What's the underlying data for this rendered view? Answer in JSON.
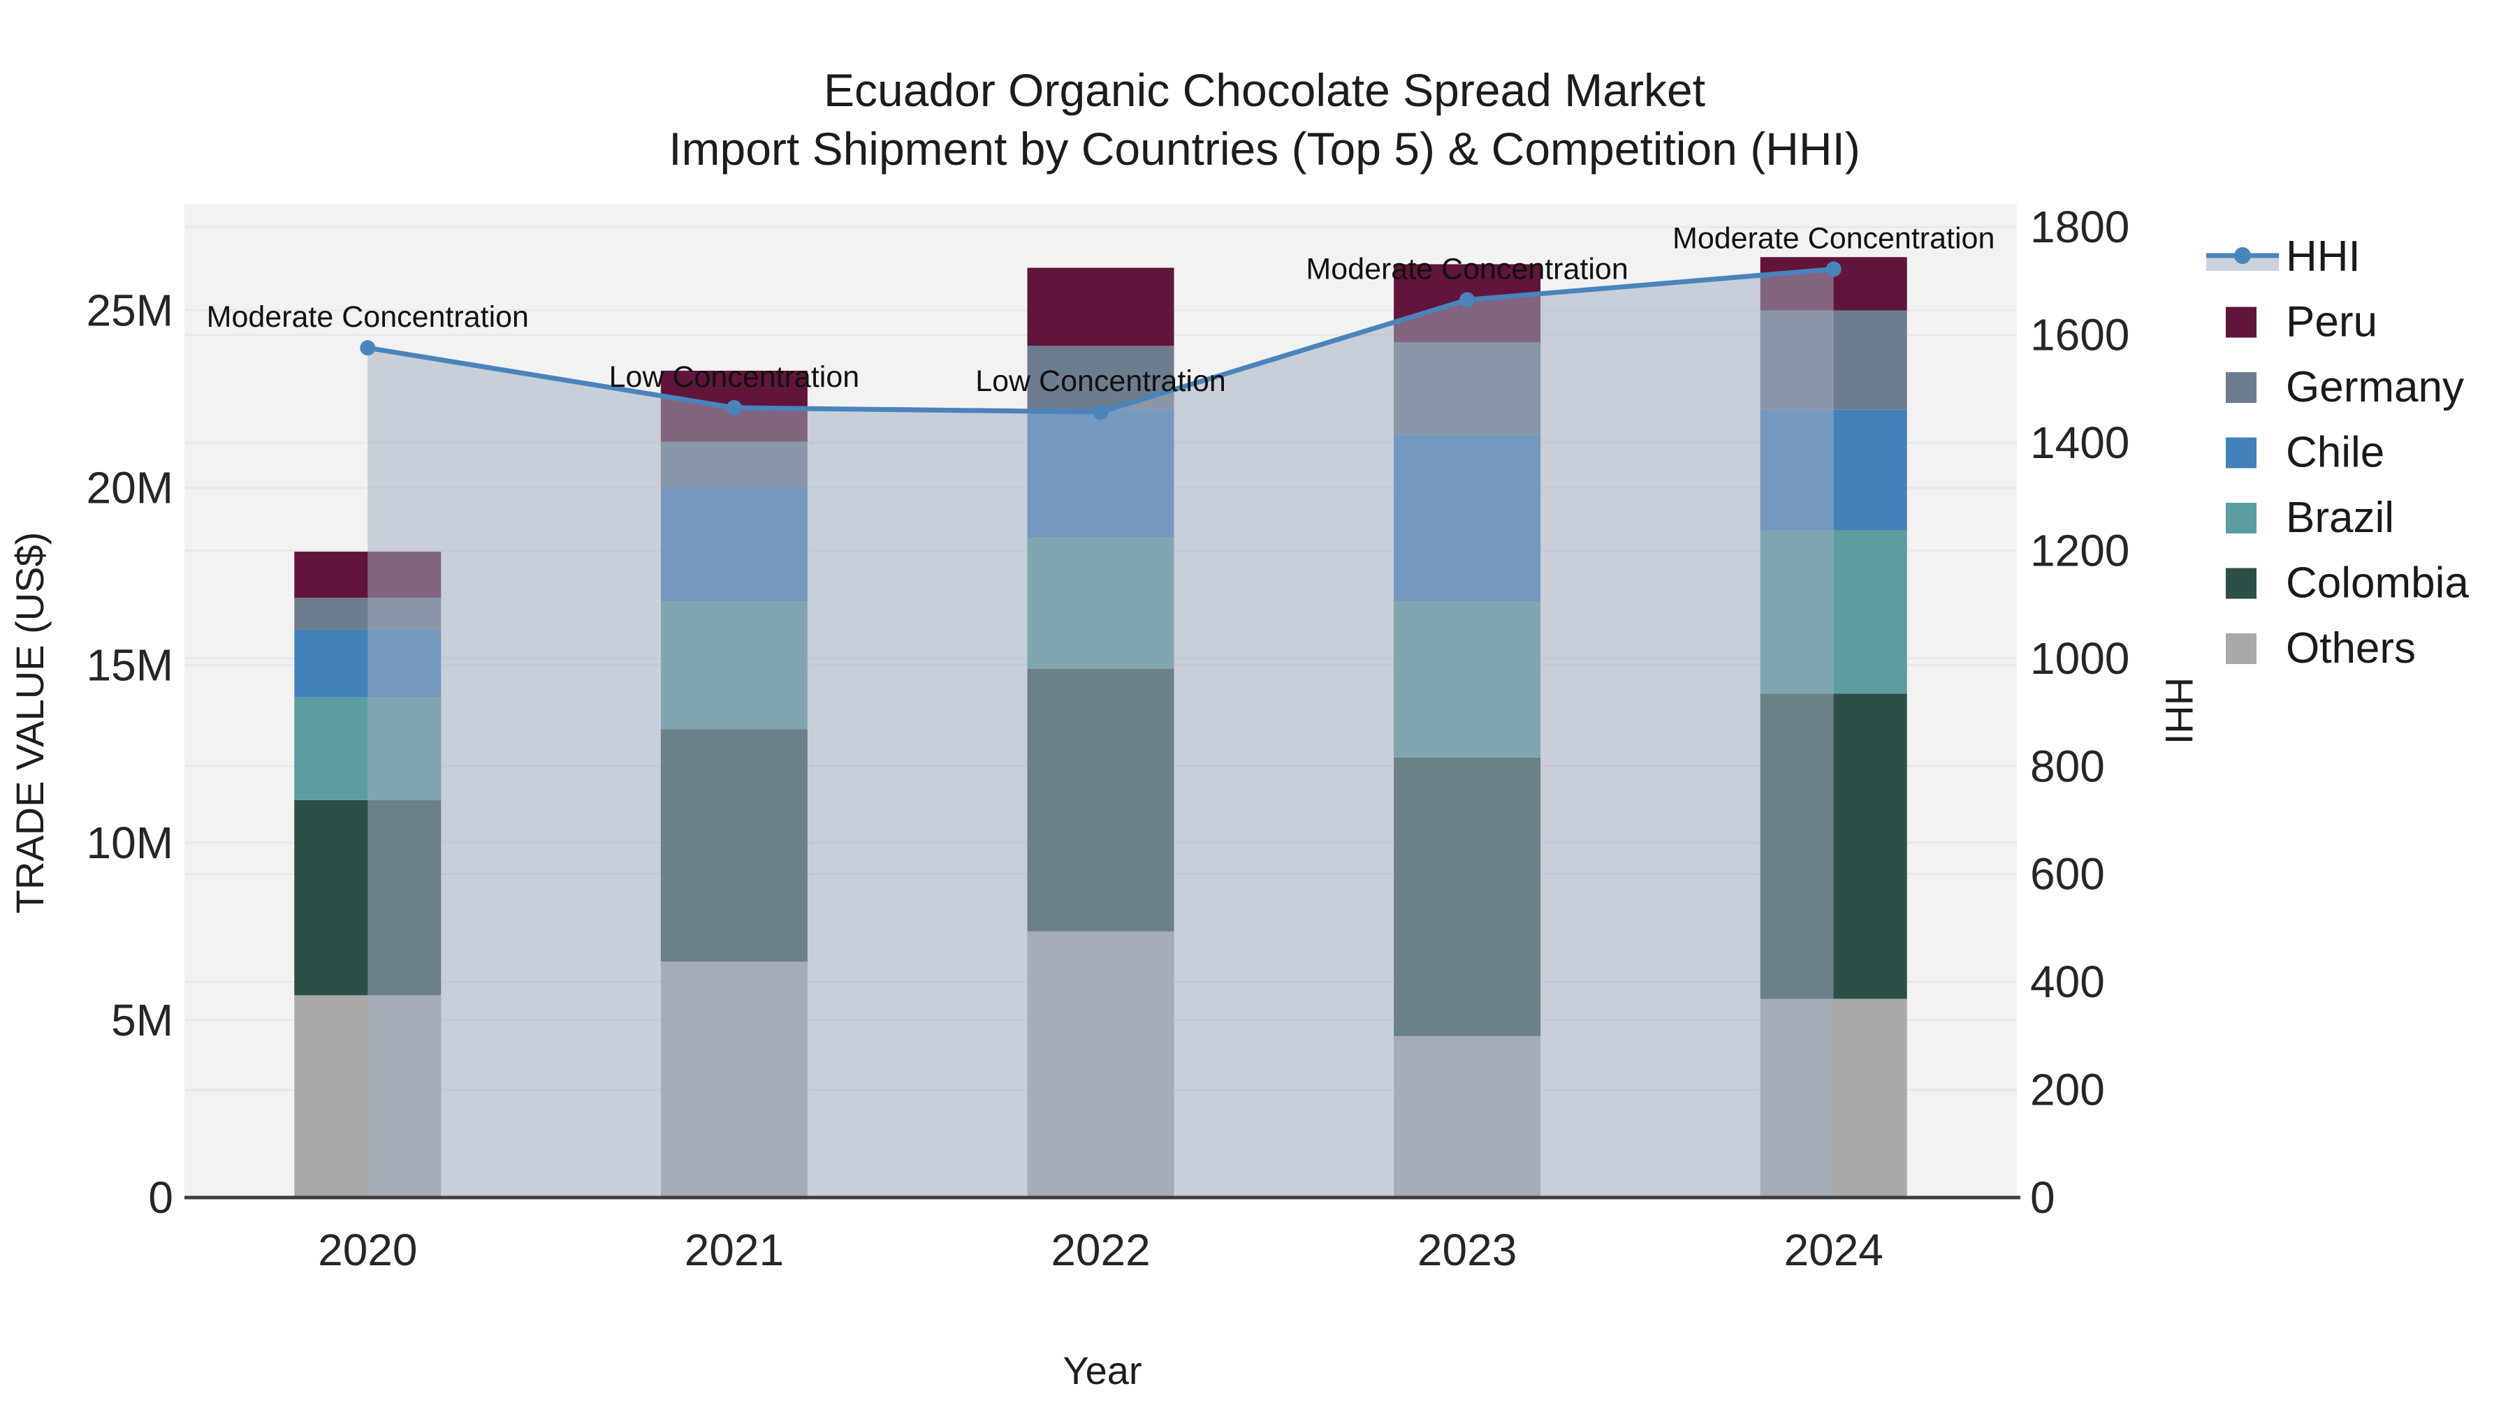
{
  "title": {
    "line1": "Ecuador Organic Chocolate Spread Market",
    "line2": "Import Shipment by Countries (Top 5) & Competition (HHI)"
  },
  "axes": {
    "x": {
      "title": "Year",
      "ticks": [
        "2020",
        "2021",
        "2022",
        "2023",
        "2024"
      ]
    },
    "y_left": {
      "title": "TRADE VALUE (US$)",
      "tick_labels": [
        "0",
        "5M",
        "10M",
        "15M",
        "20M",
        "25M"
      ],
      "tick_values": [
        0,
        5000000,
        10000000,
        15000000,
        20000000,
        25000000
      ],
      "range": [
        0,
        28000000
      ]
    },
    "y_right": {
      "title": "HHI",
      "tick_labels": [
        "0",
        "200",
        "400",
        "600",
        "800",
        "1000",
        "1200",
        "1400",
        "1600",
        "1800"
      ],
      "tick_values": [
        0,
        200,
        400,
        600,
        800,
        1000,
        1200,
        1400,
        1600,
        1800
      ],
      "range": [
        0,
        1843
      ]
    }
  },
  "legend": {
    "items": [
      {
        "label": "HHI",
        "kind": "line",
        "color": "#4A84BC"
      },
      {
        "label": "Peru",
        "kind": "swatch",
        "color": "#61153A"
      },
      {
        "label": "Germany",
        "kind": "swatch",
        "color": "#6E7D8E"
      },
      {
        "label": "Chile",
        "kind": "swatch",
        "color": "#4381BA"
      },
      {
        "label": "Brazil",
        "kind": "swatch",
        "color": "#5C9E9F"
      },
      {
        "label": "Colombia",
        "kind": "swatch",
        "color": "#2E4E4A"
      },
      {
        "label": "Others",
        "kind": "swatch",
        "color": "#A9A9A8"
      }
    ]
  },
  "colors": {
    "plot_bg": "#F2F2F3",
    "page_bg": "#FFFFFF",
    "grid": "#E5E7E9",
    "axis_line": "#3E3E3C",
    "hhi_line": "#4A84BC",
    "hhi_fill": "rgba(163,174,193,0.52)",
    "hhi_fill_legend": "#CBD2DC"
  },
  "chart_data": {
    "type": "bar",
    "subtype": "stacked-bars-with-line-overlay",
    "categories": [
      "2020",
      "2021",
      "2022",
      "2023",
      "2024"
    ],
    "bar_value_unit": "US$ (trade value)",
    "series": [
      {
        "name": "Others",
        "color": "#A9A9A8",
        "values": [
          5700000,
          6650000,
          7500000,
          4550000,
          5600000
        ]
      },
      {
        "name": "Colombia",
        "color": "#2E4E4A",
        "values": [
          5500000,
          6550000,
          7400000,
          7850000,
          8600000
        ]
      },
      {
        "name": "Brazil",
        "color": "#5C9E9F",
        "values": [
          2900000,
          3600000,
          3700000,
          4400000,
          4600000
        ]
      },
      {
        "name": "Chile",
        "color": "#4381BA",
        "values": [
          1900000,
          3200000,
          3600000,
          4700000,
          3400000
        ]
      },
      {
        "name": "Germany",
        "color": "#6E7D8E",
        "values": [
          900000,
          1300000,
          1800000,
          2600000,
          2800000
        ]
      },
      {
        "name": "Peru",
        "color": "#61153A",
        "values": [
          1300000,
          2000000,
          2200000,
          2200000,
          1500000
        ]
      }
    ],
    "line_series": {
      "name": "HHI",
      "axis": "right",
      "color": "#4A84BC",
      "area_fill": "rgba(163,174,193,0.52)",
      "values": [
        1576,
        1465,
        1457,
        1665,
        1722
      ]
    },
    "annotations": [
      "Moderate Concentration",
      "Low Concentration",
      "Low Concentration",
      "Moderate Concentration",
      "Moderate Concentration"
    ],
    "xlabel": "Year",
    "ylabel_left": "TRADE VALUE (US$)",
    "ylabel_right": "HHI",
    "ylim_left": [
      0,
      28000000
    ],
    "ylim_right": [
      0,
      1843
    ],
    "grid": "horizontal",
    "legend_position": "right"
  }
}
